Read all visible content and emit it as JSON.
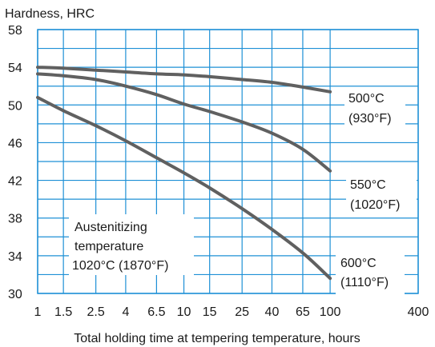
{
  "chart_data": {
    "type": "line",
    "ylabel": "Hardness, HRC",
    "xlabel": "Total holding time at tempering temperature, hours",
    "x_scale": "log",
    "xlim": [
      1,
      400
    ],
    "ylim": [
      30,
      58
    ],
    "x_ticks": [
      1,
      1.5,
      2.5,
      4,
      6.5,
      10,
      15,
      25,
      40,
      65,
      100,
      400
    ],
    "x_tick_labels": [
      "1",
      "1.5",
      "2.5",
      "4",
      "6.5",
      "10",
      "15",
      "25",
      "40",
      "65",
      "100",
      "400"
    ],
    "y_ticks": [
      30,
      34,
      38,
      42,
      46,
      50,
      54,
      58
    ],
    "y_tick_labels": [
      "30",
      "34",
      "38",
      "42",
      "46",
      "50",
      "54",
      "58"
    ],
    "grid": true,
    "colors": {
      "grid": "#1e90d6",
      "line": "#606060",
      "text": "#1a1a1a"
    },
    "series": [
      {
        "name": "500°C (930°F)",
        "label_lines": [
          "500°C",
          "(930°F)"
        ],
        "x": [
          1,
          1.5,
          2.5,
          4,
          6.5,
          10,
          15,
          25,
          40,
          65,
          100
        ],
        "y": [
          54.0,
          53.9,
          53.7,
          53.5,
          53.3,
          53.2,
          53.0,
          52.7,
          52.4,
          51.9,
          51.4
        ]
      },
      {
        "name": "550°C (1020°F)",
        "label_lines": [
          "550°C",
          "(1020°F)"
        ],
        "x": [
          1,
          1.5,
          2.5,
          4,
          6.5,
          10,
          15,
          25,
          40,
          65,
          100
        ],
        "y": [
          53.3,
          53.1,
          52.7,
          52.0,
          51.1,
          50.1,
          49.3,
          48.2,
          47.0,
          45.3,
          43.0
        ]
      },
      {
        "name": "600°C (1110°F)",
        "label_lines": [
          "600°C",
          "(1110°F)"
        ],
        "x": [
          1,
          1.5,
          2.5,
          4,
          6.5,
          10,
          15,
          25,
          40,
          65,
          100
        ],
        "y": [
          50.8,
          49.4,
          47.8,
          46.2,
          44.4,
          42.8,
          41.2,
          39.0,
          36.8,
          34.3,
          31.6
        ]
      }
    ],
    "annotation": {
      "lines": [
        "Austenitizing",
        "temperature",
        "1020°C (1870°F)"
      ]
    }
  }
}
